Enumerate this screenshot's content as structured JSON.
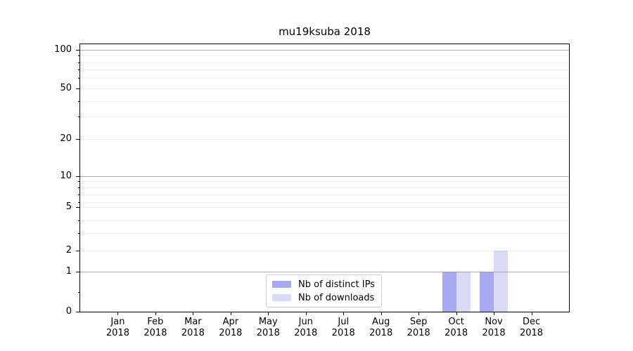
{
  "page": {
    "background": "#ffffff"
  },
  "chart_data": {
    "type": "bar",
    "title": "mu19ksuba 2018",
    "xlabel": "",
    "ylabel": "",
    "categories": [
      "Jan 2018",
      "Feb 2018",
      "Mar 2018",
      "Apr 2018",
      "May 2018",
      "Jun 2018",
      "Jul 2018",
      "Aug 2018",
      "Sep 2018",
      "Oct 2018",
      "Nov 2018",
      "Dec 2018"
    ],
    "series": [
      {
        "name": "Nb of distinct IPs",
        "color": "#a9a9f2",
        "values": [
          0,
          0,
          0,
          0,
          0,
          0,
          0,
          0,
          0,
          1,
          1,
          0
        ]
      },
      {
        "name": "Nb of downloads",
        "color": "#dadaf8",
        "values": [
          0,
          0,
          0,
          0,
          0,
          0,
          0,
          0,
          0,
          1,
          2,
          0
        ]
      }
    ],
    "y_axis": {
      "scale": "symlog",
      "ticks": [
        100,
        50,
        20,
        10,
        5,
        2,
        1,
        0
      ],
      "tick_labels": [
        "100",
        "50",
        "20",
        "10",
        "5",
        "2",
        "1",
        "0"
      ],
      "minor_ticks": [
        90,
        80,
        70,
        60,
        40,
        30,
        9,
        8,
        7,
        6,
        4,
        3,
        0.5
      ],
      "ylim": [
        0,
        111
      ]
    },
    "grid": {
      "on": true,
      "major_color": "#b0b0b0",
      "minor_color": "#ededed"
    },
    "legend": {
      "position": "lower center",
      "entries": [
        "Nb of distinct IPs",
        "Nb of downloads"
      ]
    }
  }
}
